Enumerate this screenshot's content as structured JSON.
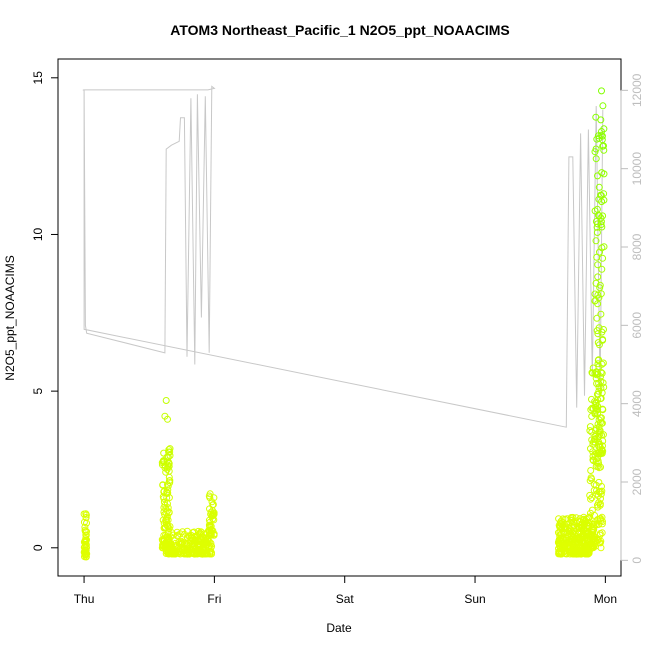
{
  "chart_data": {
    "type": "scatter",
    "title": "ATOM3 Northeast_Pacific_1 N2O5_ppt_NOAACIMS",
    "xlabel": "Date",
    "ylabel": "N2O5_ppt_NOAACIMS",
    "x_ticks": [
      "Thu",
      "Fri",
      "Sat",
      "Sun",
      "Mon"
    ],
    "x_tick_days": [
      0,
      1,
      2,
      3,
      4
    ],
    "xlim": [
      -0.2,
      4.12
    ],
    "ylim": [
      -0.9,
      15.6
    ],
    "y_ticks": [
      0,
      5,
      10,
      15
    ],
    "y2_ticks": [
      0,
      2000,
      4000,
      6000,
      8000,
      10000,
      12000
    ],
    "y2lim": [
      -400,
      12800
    ],
    "grid": false,
    "colors": {
      "low": "#dfff00",
      "high": "#7fff00",
      "secondary_line": "#c8c8c8",
      "right_axis": "#bdbdbd"
    },
    "scatter_clusters": [
      {
        "day_start": 0.0,
        "day_end": 0.02,
        "y_min": -0.3,
        "y_max": 1.3,
        "n": 45
      },
      {
        "day_start": 0.6,
        "day_end": 0.66,
        "y_min": 0.0,
        "y_max": 3.2,
        "n": 110
      },
      {
        "day_start": 0.63,
        "day_end": 0.98,
        "y_min": -0.2,
        "y_max": 0.55,
        "n": 220
      },
      {
        "day_start": 0.96,
        "day_end": 1.0,
        "y_min": 0.4,
        "y_max": 1.8,
        "n": 45
      },
      {
        "day_start": 3.64,
        "day_end": 3.88,
        "y_min": -0.2,
        "y_max": 1.0,
        "n": 280
      },
      {
        "day_start": 3.88,
        "day_end": 3.98,
        "y_min": 0.0,
        "y_max": 6.0,
        "n": 150
      },
      {
        "day_start": 3.92,
        "day_end": 3.99,
        "y_min": 3.0,
        "y_max": 15.0,
        "n": 120
      }
    ],
    "scatter_outliers": [
      {
        "day": 0.63,
        "y": 4.7
      },
      {
        "day": 0.62,
        "y": 4.2
      },
      {
        "day": 0.64,
        "y": 4.1
      }
    ],
    "secondary_series": {
      "axis": "right",
      "points": [
        [
          -0.01,
          12010
        ],
        [
          0.0,
          12000
        ],
        [
          0.01,
          6000
        ],
        [
          0.02,
          5800
        ],
        [
          0.62,
          5300
        ],
        [
          0.63,
          10500
        ],
        [
          0.67,
          10600
        ],
        [
          0.73,
          10700
        ],
        [
          0.74,
          11300
        ],
        [
          0.77,
          11300
        ],
        [
          0.79,
          5200
        ],
        [
          0.82,
          11800
        ],
        [
          0.85,
          5000
        ],
        [
          0.87,
          11900
        ],
        [
          0.9,
          6200
        ],
        [
          0.93,
          11850
        ],
        [
          0.96,
          5300
        ],
        [
          0.98,
          12100
        ],
        [
          1.0,
          12050
        ],
        [
          0.95,
          12010
        ],
        [
          0.0,
          12010
        ],
        [
          0.0,
          5900
        ],
        [
          3.7,
          3400
        ],
        [
          3.72,
          10300
        ],
        [
          3.75,
          10300
        ],
        [
          3.78,
          3900
        ],
        [
          3.81,
          10900
        ],
        [
          3.84,
          4200
        ],
        [
          3.87,
          11000
        ],
        [
          3.9,
          4700
        ],
        [
          3.93,
          11600
        ],
        [
          3.96,
          4300
        ],
        [
          3.98,
          11500
        ]
      ]
    }
  }
}
